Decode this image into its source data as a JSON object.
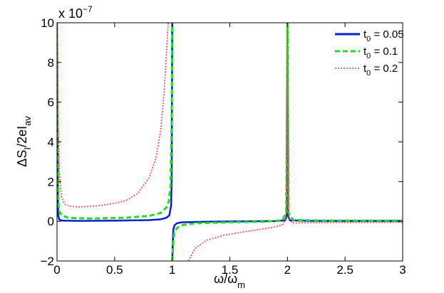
{
  "chart_data": {
    "type": "line",
    "title": "",
    "xlabel_main": "ω/ω",
    "xlabel_sub": "m",
    "ylabel_main": "ΔS",
    "ylabel_sub1": "I",
    "ylabel_mid": "/2eI",
    "ylabel_sub2": "av",
    "y_multiplier_base": "x 10",
    "y_multiplier_exp": "−7",
    "xlim": [
      0,
      3
    ],
    "ylim": [
      -2,
      10
    ],
    "xticks": [
      0,
      0.5,
      1,
      1.5,
      2,
      2.5,
      3
    ],
    "xtick_labels": [
      "0",
      "0.5",
      "1",
      "1.5",
      "2",
      "2.5",
      "3"
    ],
    "yticks": [
      -2,
      0,
      2,
      4,
      6,
      8,
      10
    ],
    "ytick_labels": [
      "−2",
      "0",
      "2",
      "4",
      "6",
      "8",
      "10"
    ],
    "grid": false,
    "legend_position": "top-right",
    "series": [
      {
        "name_main": "t",
        "name_sub": "0",
        "name_rest": " = 0.05",
        "color": "#0022cc",
        "dash": "solid",
        "points": [
          [
            0.0,
            10
          ],
          [
            0.004,
            5.0
          ],
          [
            0.008,
            0.8
          ],
          [
            0.012,
            0.25
          ],
          [
            0.02,
            0.08
          ],
          [
            0.05,
            0.03
          ],
          [
            0.2,
            0.02
          ],
          [
            0.5,
            0.03
          ],
          [
            0.8,
            0.06
          ],
          [
            0.9,
            0.1
          ],
          [
            0.95,
            0.18
          ],
          [
            0.975,
            0.3
          ],
          [
            0.99,
            0.8
          ],
          [
            0.995,
            2.0
          ],
          [
            1.0,
            10
          ]
        ],
        "points2": [
          [
            1.0,
            -2
          ],
          [
            1.005,
            -1.0
          ],
          [
            1.01,
            -0.4
          ],
          [
            1.02,
            -0.2
          ],
          [
            1.04,
            -0.1
          ],
          [
            1.08,
            -0.05
          ],
          [
            1.3,
            -0.02
          ],
          [
            1.6,
            0.0
          ],
          [
            1.9,
            0.01
          ],
          [
            1.98,
            0.05
          ],
          [
            1.995,
            0.3
          ],
          [
            2.0,
            10
          ]
        ],
        "points3": [
          [
            2.0,
            10
          ],
          [
            2.005,
            0.3
          ],
          [
            2.02,
            0.05
          ],
          [
            2.2,
            0.02
          ],
          [
            2.6,
            0.02
          ],
          [
            3.0,
            0.02
          ]
        ]
      },
      {
        "name_main": "t",
        "name_sub": "0",
        "name_rest": " = 0.1",
        "color": "#22dd22",
        "dash": "7,4",
        "points": [
          [
            0.0,
            10
          ],
          [
            0.006,
            4.0
          ],
          [
            0.012,
            1.0
          ],
          [
            0.02,
            0.5
          ],
          [
            0.04,
            0.3
          ],
          [
            0.1,
            0.17
          ],
          [
            0.3,
            0.14
          ],
          [
            0.6,
            0.18
          ],
          [
            0.8,
            0.27
          ],
          [
            0.9,
            0.42
          ],
          [
            0.95,
            0.7
          ],
          [
            0.97,
            1.0
          ],
          [
            0.985,
            1.8
          ],
          [
            0.995,
            5.0
          ],
          [
            1.0,
            10
          ]
        ],
        "points2": [
          [
            1.0,
            -2
          ],
          [
            1.005,
            -1.5
          ],
          [
            1.01,
            -0.9
          ],
          [
            1.02,
            -0.55
          ],
          [
            1.04,
            -0.35
          ],
          [
            1.08,
            -0.2
          ],
          [
            1.2,
            -0.1
          ],
          [
            1.5,
            -0.05
          ],
          [
            1.8,
            -0.02
          ],
          [
            1.95,
            0.05
          ],
          [
            1.99,
            0.4
          ],
          [
            2.0,
            10
          ]
        ],
        "points3": [
          [
            2.0,
            10
          ],
          [
            2.01,
            0.4
          ],
          [
            2.05,
            0.07
          ],
          [
            2.3,
            0.04
          ],
          [
            3.0,
            0.03
          ]
        ]
      },
      {
        "name_main": "t",
        "name_sub": "0",
        "name_rest": " = 0.2",
        "color": "#ee4444",
        "dash": "2,2",
        "points": [
          [
            0.0,
            10
          ],
          [
            0.01,
            5.0
          ],
          [
            0.02,
            2.5
          ],
          [
            0.04,
            1.2
          ],
          [
            0.07,
            0.85
          ],
          [
            0.12,
            0.75
          ],
          [
            0.2,
            0.72
          ],
          [
            0.35,
            0.78
          ],
          [
            0.5,
            0.9
          ],
          [
            0.6,
            1.05
          ],
          [
            0.7,
            1.4
          ],
          [
            0.8,
            2.2
          ],
          [
            0.86,
            3.2
          ],
          [
            0.9,
            4.6
          ],
          [
            0.93,
            6.5
          ],
          [
            0.95,
            8.5
          ],
          [
            0.965,
            10
          ]
        ],
        "points2": [
          [
            1.14,
            -2
          ],
          [
            1.2,
            -1.35
          ],
          [
            1.3,
            -0.95
          ],
          [
            1.45,
            -0.7
          ],
          [
            1.6,
            -0.55
          ],
          [
            1.75,
            -0.42
          ],
          [
            1.85,
            -0.33
          ],
          [
            1.92,
            -0.25
          ],
          [
            1.96,
            -0.15
          ],
          [
            1.985,
            0.1
          ],
          [
            1.995,
            1.0
          ],
          [
            2.0,
            10
          ]
        ],
        "points3": [
          [
            2.0,
            10
          ],
          [
            2.005,
            1.0
          ],
          [
            2.015,
            0.1
          ],
          [
            2.04,
            -0.08
          ],
          [
            2.1,
            -0.08
          ],
          [
            2.5,
            -0.06
          ],
          [
            3.0,
            -0.05
          ]
        ]
      }
    ]
  }
}
